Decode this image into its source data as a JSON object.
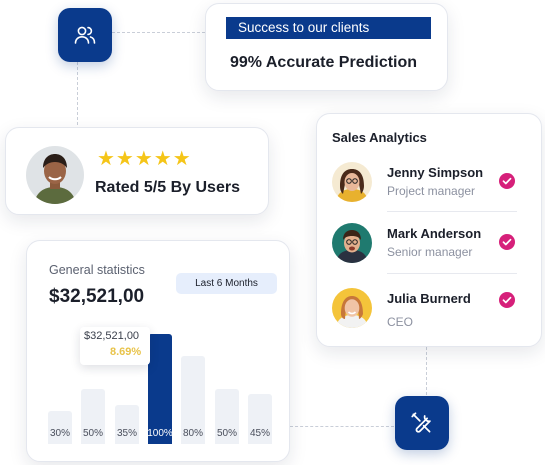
{
  "success_card": {
    "banner": "Success to our clients",
    "stat": "99% Accurate Prediction"
  },
  "rating_card": {
    "stars": "★★★★★",
    "text": "Rated 5/5 By Users"
  },
  "analytics": {
    "title": "Sales Analytics",
    "people": [
      {
        "name": "Jenny Simpson",
        "role": "Project manager"
      },
      {
        "name": "Mark Anderson",
        "role": "Senior manager"
      },
      {
        "name": "Julia Burnerd",
        "role": "CEO"
      }
    ]
  },
  "stats": {
    "label": "General statistics",
    "value": "$32,521,00",
    "period": "Last 6 Months",
    "tooltip_value": "$32,521,00",
    "tooltip_percent": "8.69%"
  },
  "chart_data": {
    "type": "bar",
    "categories": [
      "30%",
      "50%",
      "35%",
      "100%",
      "80%",
      "50%",
      "45%"
    ],
    "values": [
      30,
      50,
      35,
      100,
      80,
      50,
      45
    ],
    "active_index": 3,
    "ylim": [
      0,
      100
    ]
  },
  "icons": {
    "top_tile": "users-icon",
    "bottom_tile": "tools-icon",
    "status": "check-circle-icon"
  },
  "colors": {
    "brand": "#0a3a8c",
    "star": "#f5c518",
    "check": "#d6207a",
    "highlight": "#e8c34a",
    "bar_inactive": "#eef1f6"
  }
}
